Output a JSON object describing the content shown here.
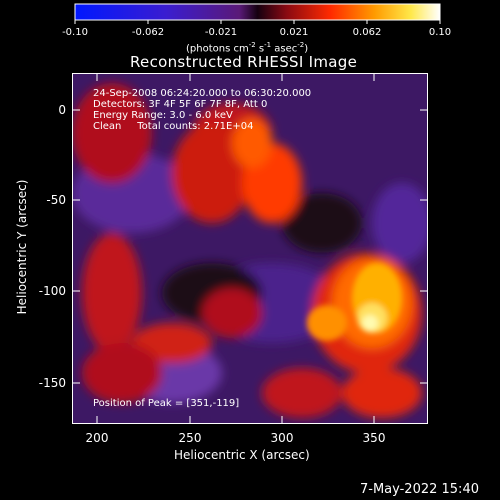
{
  "colorbar": {
    "ticks": [
      "-0.10",
      "-0.062",
      "-0.021",
      "0.021",
      "0.062",
      "0.10"
    ],
    "units_text": "(photons cm",
    "units_exp1": "-2",
    "units_mid": " s",
    "units_exp2": "-1",
    "units_end": " asec",
    "units_exp3": "-2",
    "units_close": ")"
  },
  "plot": {
    "title": "Reconstructed RHESSI Image",
    "info_lines": [
      "24-Sep-2008 06:24:20.000 to 06:30:20.000",
      "Detectors: 3F 4F 5F 6F 7F 8F, Att 0",
      "Energy Range: 3.0 - 6.0 keV",
      "Clean     Total counts: 2.71E+04"
    ],
    "peak_text": "Position of Peak = [351,-119]",
    "xlabel": "Heliocentric X (arcsec)",
    "ylabel": "Heliocentric Y (arcsec)",
    "xticks": [
      "200",
      "250",
      "300",
      "350"
    ],
    "yticks": [
      "0",
      "-50",
      "-100",
      "-150"
    ]
  },
  "footer": {
    "date": "7-May-2022 15:40"
  }
}
